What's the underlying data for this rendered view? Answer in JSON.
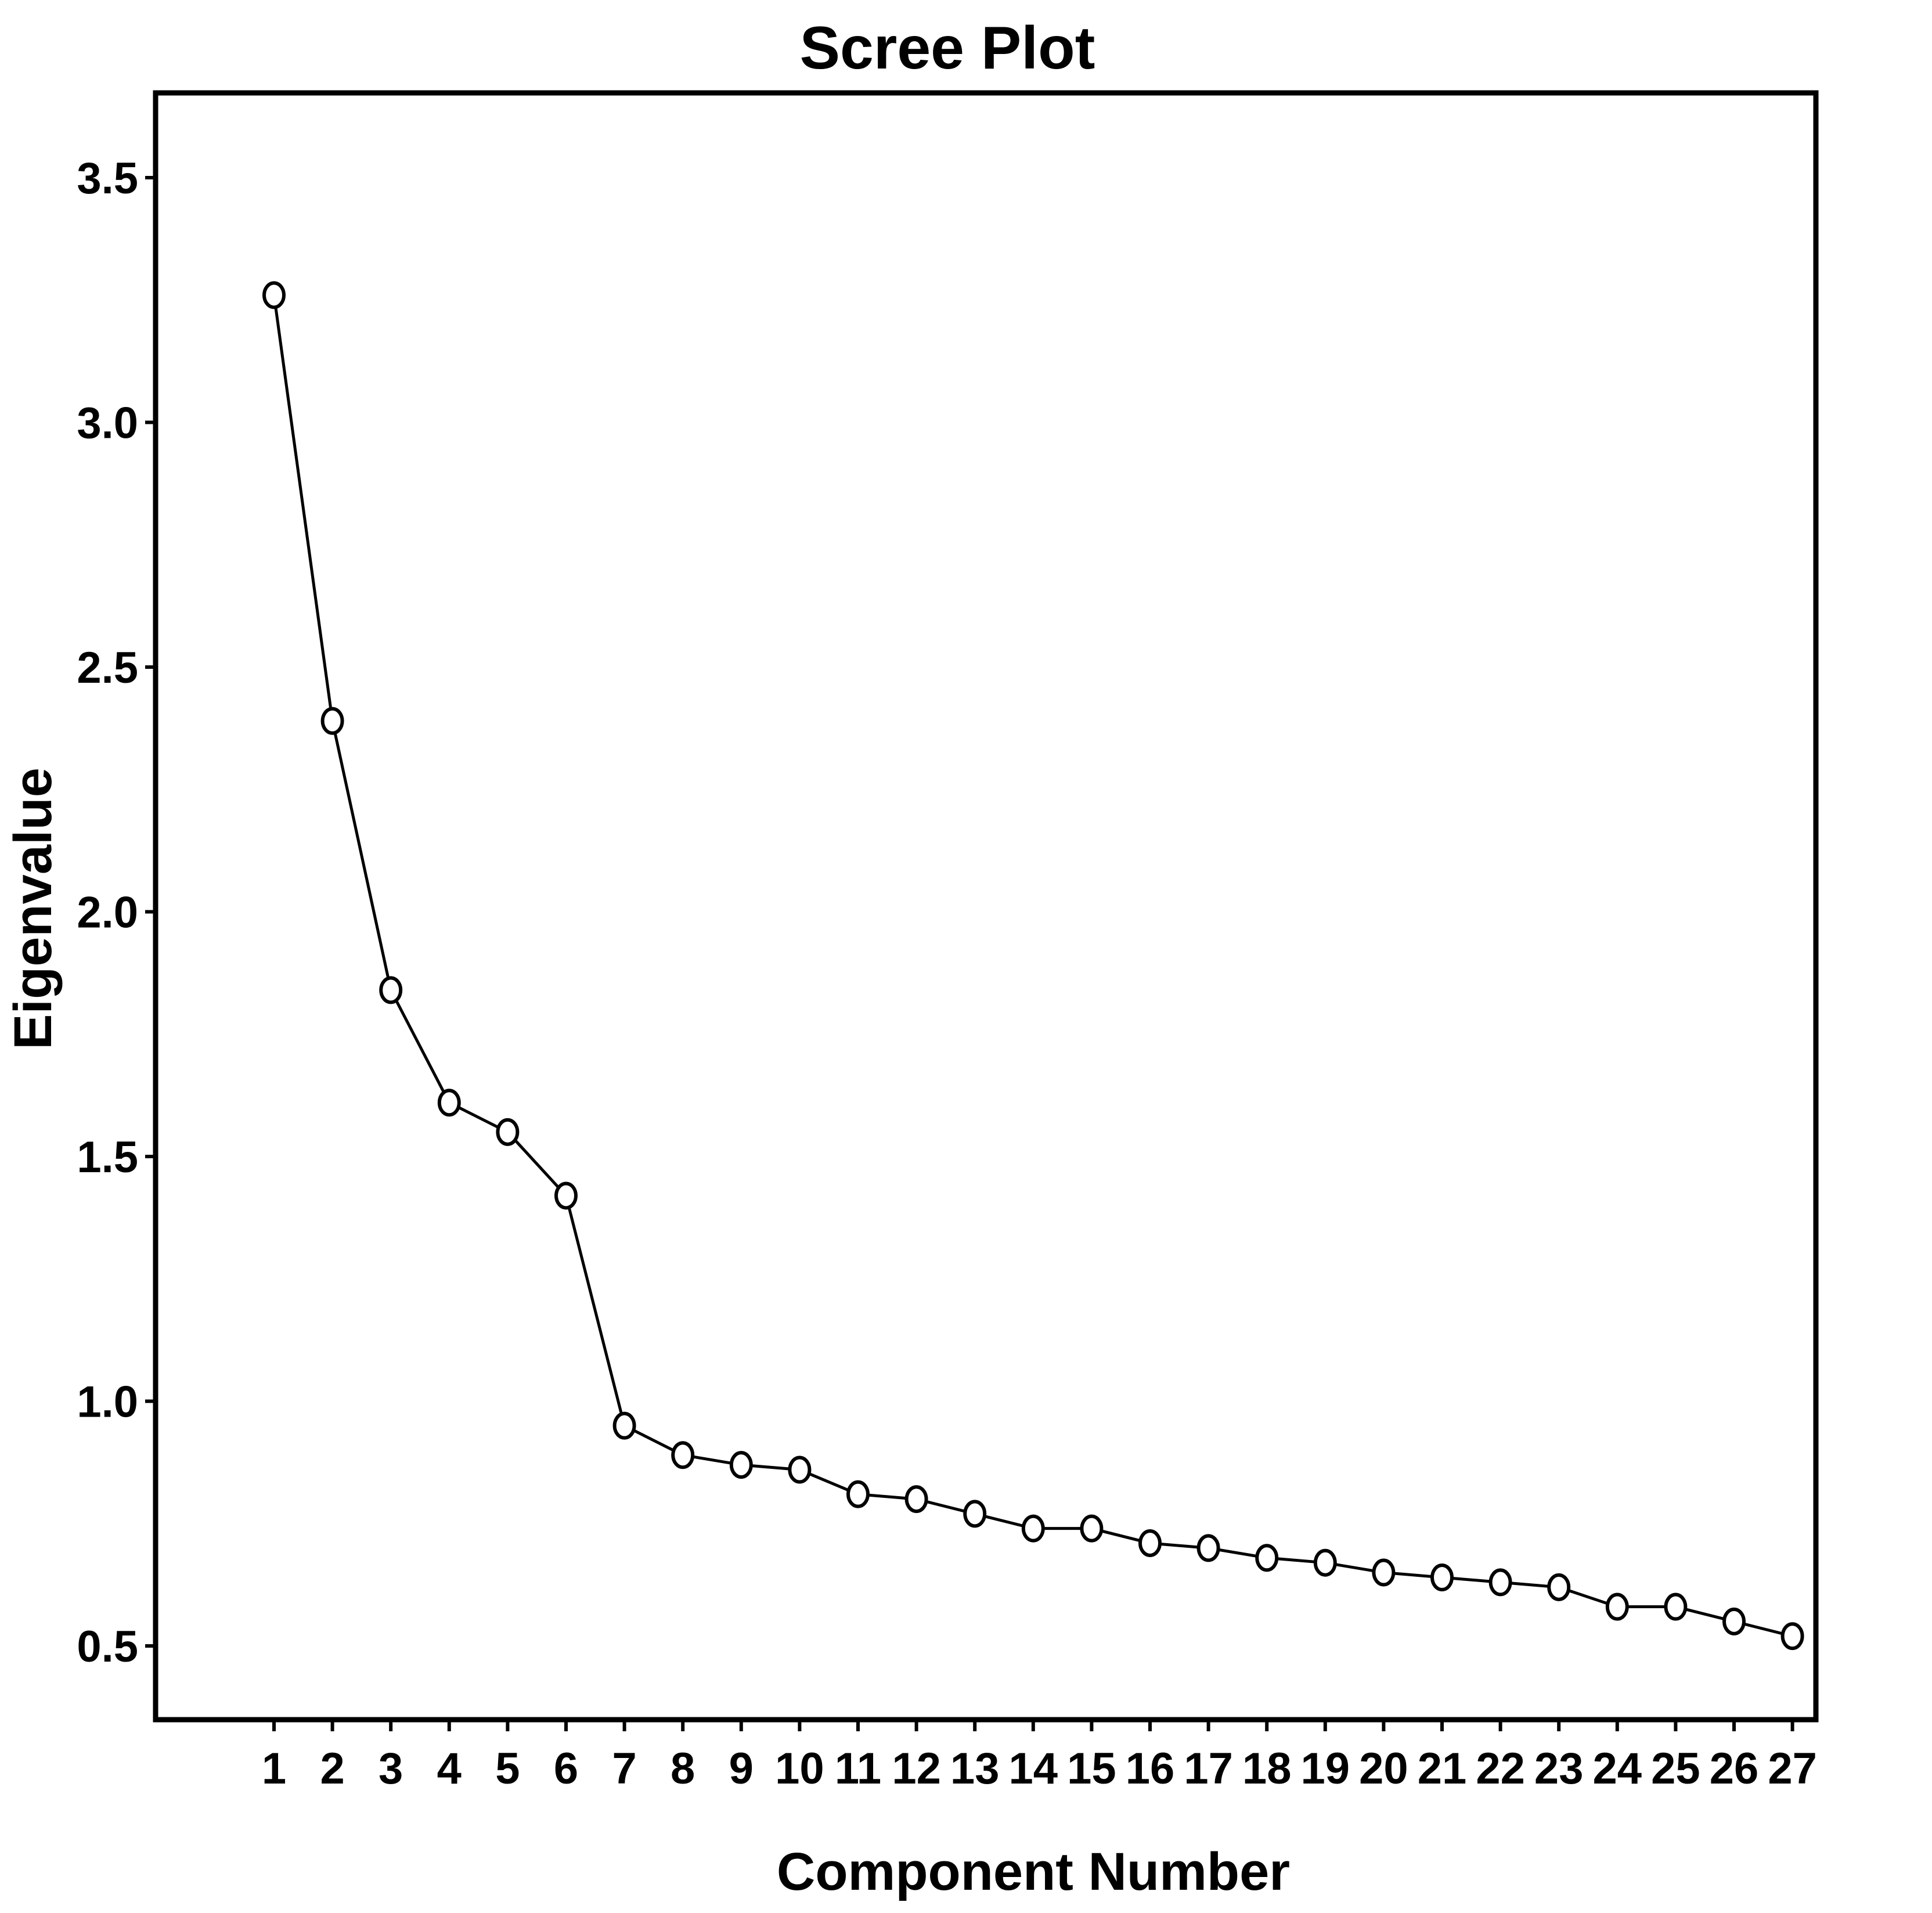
{
  "chart_data": {
    "type": "line",
    "title": "Scree Plot",
    "xlabel": "Component Number",
    "ylabel": "Eigenvalue",
    "x": [
      1,
      2,
      3,
      4,
      5,
      6,
      7,
      8,
      9,
      10,
      11,
      12,
      13,
      14,
      15,
      16,
      17,
      18,
      19,
      20,
      21,
      22,
      23,
      24,
      25,
      26,
      27
    ],
    "series": [
      {
        "values": [
          3.26,
          2.39,
          1.84,
          1.61,
          1.55,
          1.42,
          0.95,
          0.89,
          0.87,
          0.86,
          0.81,
          0.8,
          0.77,
          0.74,
          0.74,
          0.71,
          0.7,
          0.68,
          0.67,
          0.65,
          0.64,
          0.63,
          0.62,
          0.58,
          0.58,
          0.55,
          0.52
        ],
        "marker": "open-circle",
        "color": "#000000"
      }
    ],
    "ylim": [
      0.35,
      3.67
    ],
    "xlim": [
      0,
      28
    ],
    "yticks": [
      0.5,
      1.0,
      1.5,
      2.0,
      2.5,
      3.0,
      3.5
    ],
    "ytick_labels": [
      "0.5",
      "1.0",
      "1.5",
      "2.0",
      "2.5",
      "3.0",
      "3.5"
    ],
    "xtick_labels": [
      "1",
      "2",
      "3",
      "4",
      "5",
      "6",
      "7",
      "8",
      "9",
      "10",
      "11",
      "12",
      "13",
      "14",
      "15",
      "16",
      "17",
      "18",
      "19",
      "20",
      "21",
      "22",
      "23",
      "24",
      "25",
      "26",
      "27"
    ],
    "grid": false,
    "legend": "none"
  }
}
